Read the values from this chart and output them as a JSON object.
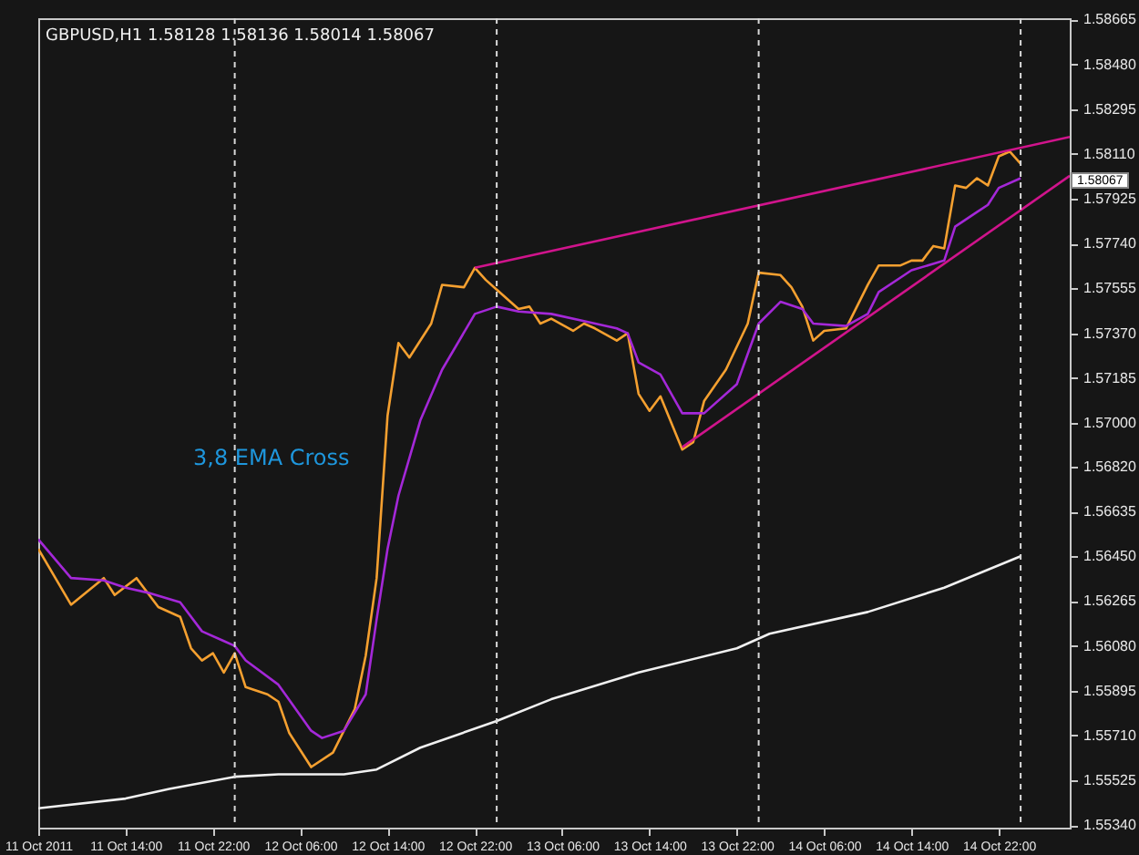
{
  "chart_data": {
    "type": "line",
    "title": "GBPUSD,H1  1.58128 1.58136 1.58014 1.58067",
    "annotations": [
      "3,8 EMA Cross",
      "1.58067"
    ],
    "series": [
      {
        "type": "line",
        "color": "#f5a030",
        "x": [
          "2011-10-11T06:00",
          "2011-10-11T09:00",
          "2011-10-11T12:00",
          "2011-10-11T13:00",
          "2011-10-11T15:00",
          "2011-10-11T17:00",
          "2011-10-11T19:00",
          "2011-10-11T20:00",
          "2011-10-11T21:00",
          "2011-10-11T22:00",
          "2011-10-11T23:00",
          "2011-10-12T00:00",
          "2011-10-12T01:00",
          "2011-10-12T03:00",
          "2011-10-12T04:00",
          "2011-10-12T05:00",
          "2011-10-12T07:00",
          "2011-10-12T09:00",
          "2011-10-12T11:00",
          "2011-10-12T12:00",
          "2011-10-12T13:00",
          "2011-10-12T14:00",
          "2011-10-12T15:00",
          "2011-10-12T16:00",
          "2011-10-12T18:00",
          "2011-10-12T19:00",
          "2011-10-12T21:00",
          "2011-10-12T22:00",
          "2011-10-12T23:00",
          "2011-10-13T00:00",
          "2011-10-13T02:00",
          "2011-10-13T03:00",
          "2011-10-13T04:00",
          "2011-10-13T05:00",
          "2011-10-13T07:00",
          "2011-10-13T08:00",
          "2011-10-13T09:00",
          "2011-10-13T11:00",
          "2011-10-13T12:00",
          "2011-10-13T13:00",
          "2011-10-13T14:00",
          "2011-10-13T15:00",
          "2011-10-13T17:00",
          "2011-10-13T18:00",
          "2011-10-13T19:00",
          "2011-10-13T21:00",
          "2011-10-13T23:00",
          "2011-10-14T00:00",
          "2011-10-14T02:00",
          "2011-10-14T03:00",
          "2011-10-14T04:00",
          "2011-10-14T05:00",
          "2011-10-14T06:00",
          "2011-10-14T08:00",
          "2011-10-14T10:00",
          "2011-10-14T11:00",
          "2011-10-14T13:00",
          "2011-10-14T14:00",
          "2011-10-14T15:00",
          "2011-10-14T16:00",
          "2011-10-14T17:00",
          "2011-10-14T18:00",
          "2011-10-14T19:00",
          "2011-10-14T20:00",
          "2011-10-14T21:00",
          "2011-10-14T22:00",
          "2011-10-14T23:00",
          "2011-10-15T00:00"
        ],
        "values": [
          1.5648,
          1.5625,
          1.5636,
          1.5629,
          1.5636,
          1.5624,
          1.562,
          1.5607,
          1.5602,
          1.5605,
          1.5597,
          1.5605,
          1.5591,
          1.5588,
          1.5585,
          1.5572,
          1.5558,
          1.5564,
          1.5582,
          1.5604,
          1.5636,
          1.5703,
          1.5733,
          1.5727,
          1.5741,
          1.5757,
          1.5756,
          1.5764,
          1.5759,
          1.5755,
          1.5747,
          1.5748,
          1.5741,
          1.5743,
          1.5738,
          1.5741,
          1.5739,
          1.5734,
          1.5737,
          1.5712,
          1.5705,
          1.5711,
          1.5689,
          1.5692,
          1.5709,
          1.5722,
          1.5741,
          1.5762,
          1.5761,
          1.5756,
          1.5748,
          1.5734,
          1.5738,
          1.5739,
          1.5757,
          1.5765,
          1.5765,
          1.5767,
          1.5767,
          1.5773,
          1.5772,
          1.5798,
          1.5797,
          1.5801,
          1.5798,
          1.581,
          1.5812,
          1.5807
        ]
      },
      {
        "type": "line",
        "color": "#a428d8",
        "x": [
          "2011-10-11T06:00",
          "2011-10-11T09:00",
          "2011-10-11T12:00",
          "2011-10-11T14:00",
          "2011-10-11T16:00",
          "2011-10-11T19:00",
          "2011-10-11T21:00",
          "2011-10-11T23:00",
          "2011-10-12T00:00",
          "2011-10-12T01:00",
          "2011-10-12T04:00",
          "2011-10-12T07:00",
          "2011-10-12T08:00",
          "2011-10-12T10:00",
          "2011-10-12T12:00",
          "2011-10-12T13:00",
          "2011-10-12T14:00",
          "2011-10-12T15:00",
          "2011-10-12T17:00",
          "2011-10-12T19:00",
          "2011-10-12T22:00",
          "2011-10-13T00:00",
          "2011-10-13T02:00",
          "2011-10-13T05:00",
          "2011-10-13T08:00",
          "2011-10-13T11:00",
          "2011-10-13T12:00",
          "2011-10-13T13:00",
          "2011-10-13T15:00",
          "2011-10-13T17:00",
          "2011-10-13T19:00",
          "2011-10-13T22:00",
          "2011-10-14T00:00",
          "2011-10-14T02:00",
          "2011-10-14T04:00",
          "2011-10-14T05:00",
          "2011-10-14T08:00",
          "2011-10-14T10:00",
          "2011-10-14T11:00",
          "2011-10-14T13:00",
          "2011-10-14T14:00",
          "2011-10-14T17:00",
          "2011-10-14T18:00",
          "2011-10-14T20:00",
          "2011-10-14T21:00",
          "2011-10-14T22:00",
          "2011-10-15T00:00"
        ],
        "values": [
          1.5652,
          1.5636,
          1.5635,
          1.5632,
          1.563,
          1.5626,
          1.5614,
          1.561,
          1.5608,
          1.5602,
          1.5592,
          1.5573,
          1.557,
          1.5573,
          1.5588,
          1.5619,
          1.5648,
          1.567,
          1.5701,
          1.5722,
          1.5745,
          1.5748,
          1.5746,
          1.5745,
          1.5742,
          1.5739,
          1.5737,
          1.5725,
          1.572,
          1.5704,
          1.5704,
          1.5716,
          1.5741,
          1.575,
          1.5747,
          1.5741,
          1.574,
          1.5745,
          1.5754,
          1.576,
          1.5763,
          1.5767,
          1.5781,
          1.5787,
          1.579,
          1.5797,
          1.5801
        ]
      },
      {
        "type": "line",
        "color": "#f0f0f0",
        "x": [
          "2011-10-11T06:00",
          "2011-10-11T14:00",
          "2011-10-11T18:00",
          "2011-10-12T00:00",
          "2011-10-12T04:00",
          "2011-10-12T10:00",
          "2011-10-12T13:00",
          "2011-10-12T17:00",
          "2011-10-13T00:00",
          "2011-10-13T05:00",
          "2011-10-13T13:00",
          "2011-10-13T22:00",
          "2011-10-14T01:00",
          "2011-10-14T10:00",
          "2011-10-14T17:00",
          "2011-10-15T00:00"
        ],
        "values": [
          1.5541,
          1.5545,
          1.5549,
          1.5554,
          1.5555,
          1.5555,
          1.5557,
          1.5566,
          1.5577,
          1.5586,
          1.5597,
          1.5607,
          1.5613,
          1.5622,
          1.5632,
          1.5645
        ]
      },
      {
        "type": "line",
        "color": "#d0148c",
        "x": [
          "2011-10-12T22:00",
          "2011-10-15T04:30"
        ],
        "values": [
          1.5764,
          1.5818
        ]
      },
      {
        "type": "line",
        "color": "#d0148c",
        "x": [
          "2011-10-13T17:00",
          "2011-10-15T04:30"
        ],
        "values": [
          1.569,
          1.5802
        ]
      }
    ],
    "xlim": [
      "2011-10-11T06:00",
      "2011-10-15T04:30"
    ],
    "xticks": [
      {
        "value": "2011-10-11T06:00",
        "label": "11 Oct 2011"
      },
      {
        "value": "2011-10-11T14:00",
        "label": "11 Oct 14:00"
      },
      {
        "value": "2011-10-11T22:00",
        "label": "11 Oct 22:00"
      },
      {
        "value": "2011-10-12T06:00",
        "label": "12 Oct 06:00"
      },
      {
        "value": "2011-10-12T14:00",
        "label": "12 Oct 14:00"
      },
      {
        "value": "2011-10-12T22:00",
        "label": "12 Oct 22:00"
      },
      {
        "value": "2011-10-13T06:00",
        "label": "13 Oct 06:00"
      },
      {
        "value": "2011-10-13T14:00",
        "label": "13 Oct 14:00"
      },
      {
        "value": "2011-10-13T22:00",
        "label": "13 Oct 22:00"
      },
      {
        "value": "2011-10-14T06:00",
        "label": "14 Oct 06:00"
      },
      {
        "value": "2011-10-14T14:00",
        "label": "14 Oct 14:00"
      },
      {
        "value": "2011-10-14T22:00",
        "label": "14 Oct 22:00"
      }
    ],
    "ylim": [
      1.5533,
      1.5867
    ],
    "yticks": [
      {
        "value": 1.5534,
        "label": "1.55340"
      },
      1.55525,
      {
        "value": 1.5571,
        "label": "1.55710"
      },
      1.55895,
      {
        "value": 1.5608,
        "label": "1.56080"
      },
      1.56265,
      {
        "value": 1.5645,
        "label": "1.56450"
      },
      1.56635,
      {
        "value": 1.5682,
        "label": "1.56820"
      },
      {
        "value": 1.57,
        "label": "1.57000"
      },
      1.57185,
      {
        "value": 1.5737,
        "label": "1.57370"
      },
      1.57555,
      {
        "value": 1.5774,
        "label": "1.57740"
      },
      1.57925,
      {
        "value": 1.5811,
        "label": "1.58110"
      },
      1.58295,
      {
        "value": 1.5848,
        "label": "1.58480"
      },
      1.58665
    ],
    "ref_lines": [
      {
        "axis": "x",
        "value": "2011-10-12T00:00",
        "color": "#d8d8d8",
        "line_style": "dashed"
      },
      {
        "axis": "x",
        "value": "2011-10-13T00:00",
        "color": "#d8d8d8",
        "line_style": "dashed"
      },
      {
        "axis": "x",
        "value": "2011-10-14T00:00",
        "color": "#d8d8d8",
        "line_style": "dashed"
      },
      {
        "axis": "x",
        "value": "2011-10-15T00:00",
        "color": "#d8d8d8",
        "line_style": "dashed"
      }
    ],
    "grid": false,
    "marker": "none",
    "line_style": "solid"
  }
}
